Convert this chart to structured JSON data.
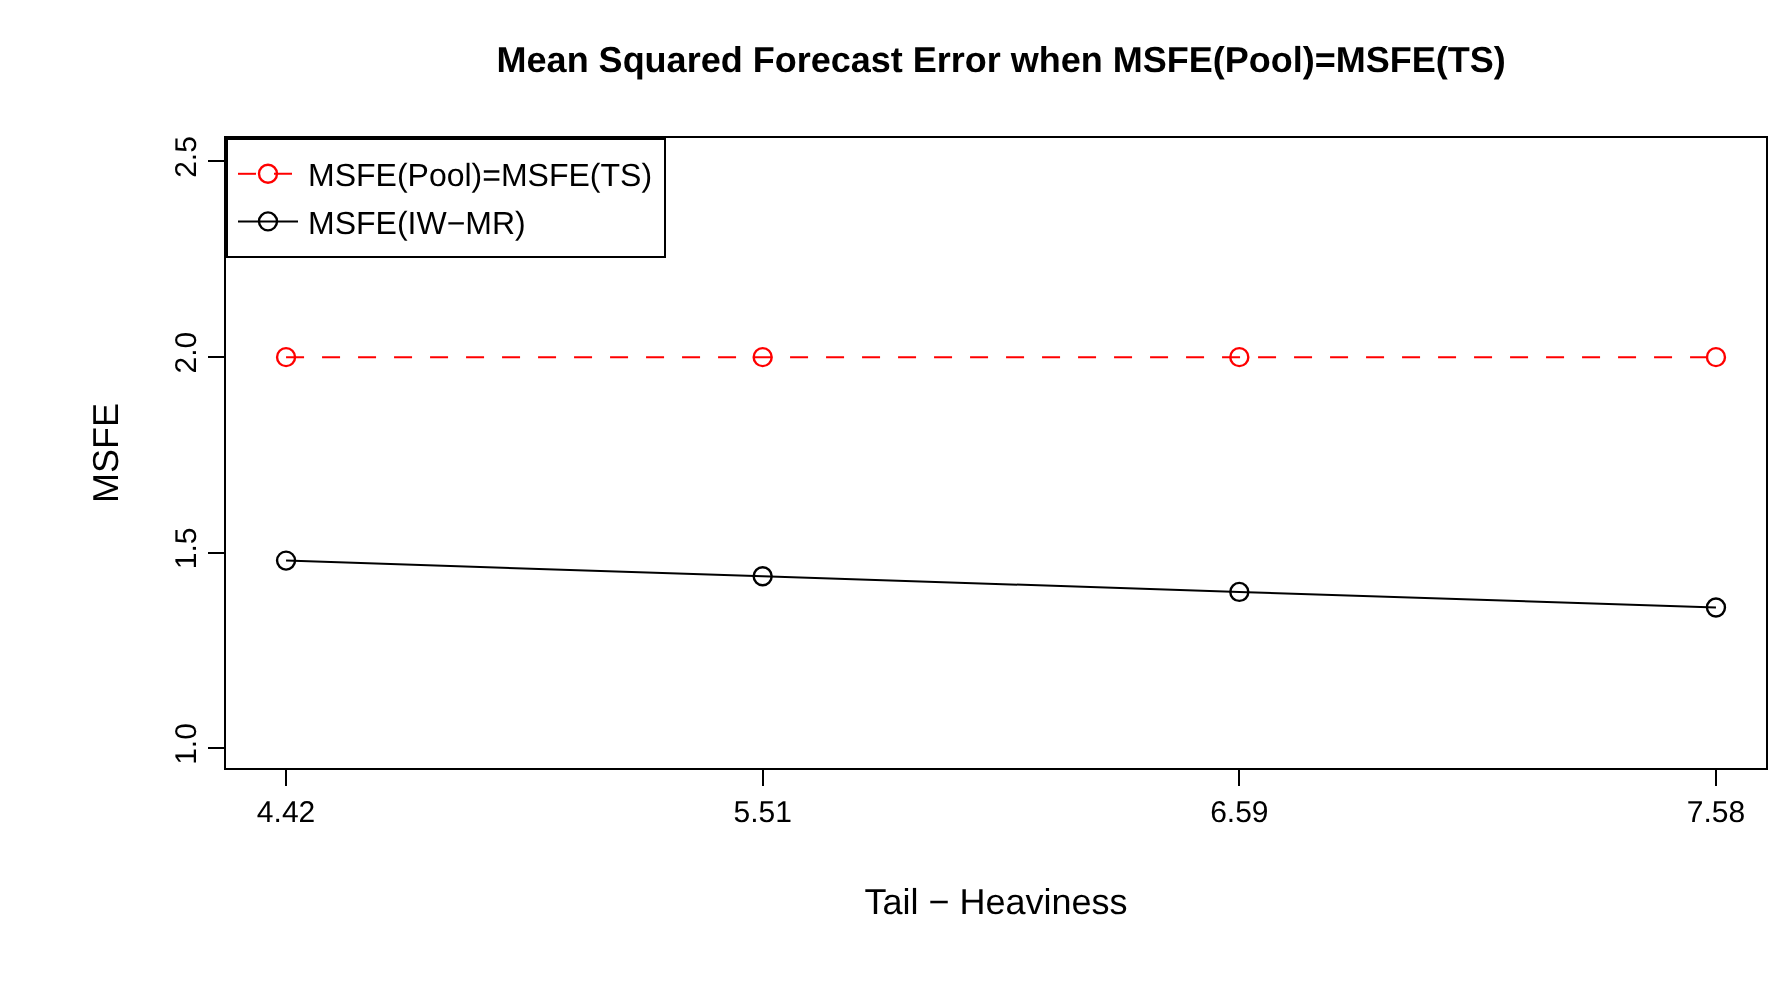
{
  "chart_data": {
    "type": "line",
    "title": "Mean Squared Forecast Error when MSFE(Pool)=MSFE(TS)",
    "xlabel": "Tail − Heaviness",
    "ylabel": "MSFE",
    "categories": [
      "4.42",
      "5.51",
      "6.59",
      "7.58"
    ],
    "series": [
      {
        "name": "MSFE(Pool)=MSFE(TS)",
        "color": "#ff0000",
        "values": [
          2.0,
          2.0,
          2.0,
          2.0
        ],
        "line_style": "dashed"
      },
      {
        "name": "MSFE(IW−MR)",
        "color": "#000000",
        "values": [
          1.48,
          1.44,
          1.4,
          1.36
        ],
        "line_style": "solid"
      }
    ],
    "ylim": [
      0.95,
      2.56
    ],
    "yticks": [
      {
        "value": 1.0,
        "label": "1.0"
      },
      {
        "value": 1.5,
        "label": "1.5"
      },
      {
        "value": 2.0,
        "label": "2.0"
      },
      {
        "value": 2.5,
        "label": "2.5"
      }
    ],
    "marker": "circle",
    "legend": "top left"
  }
}
